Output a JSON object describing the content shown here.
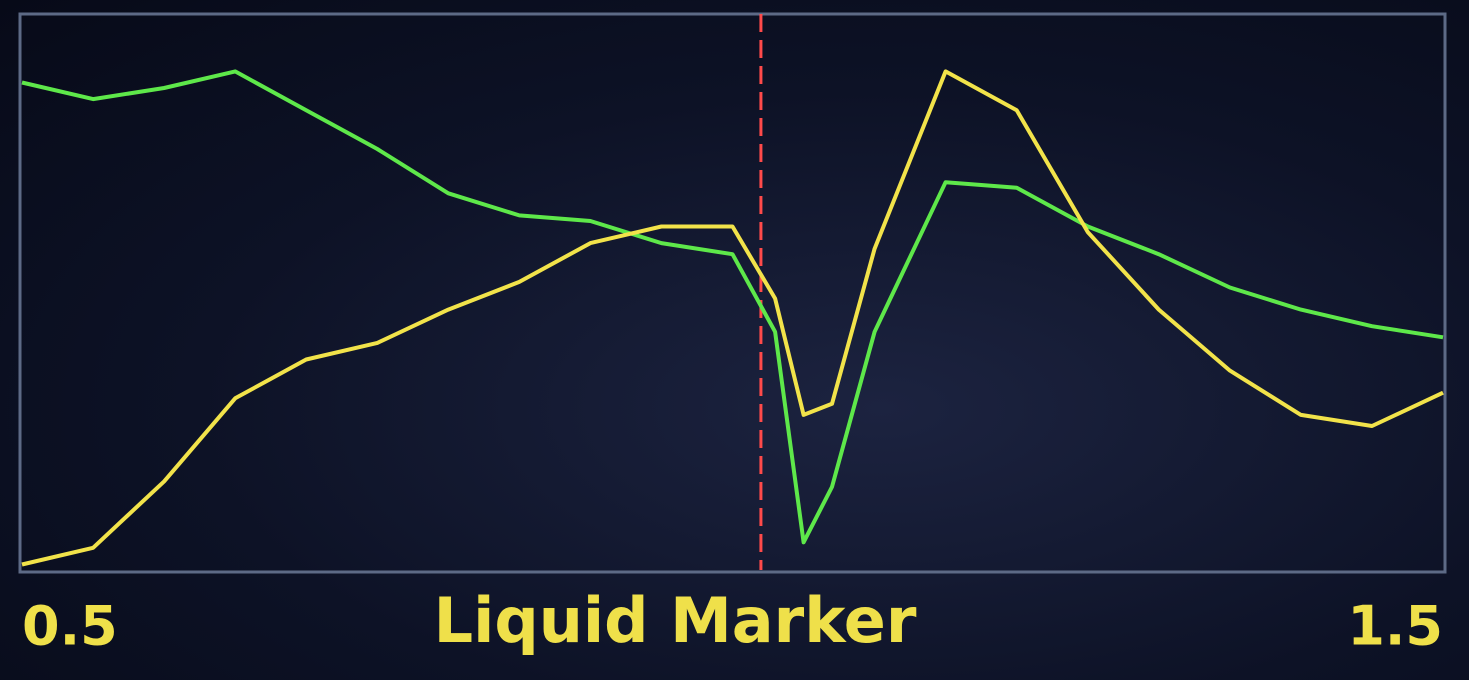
{
  "chart_data": {
    "type": "line",
    "title": "Liquid Marker",
    "x": [
      0.5,
      0.55,
      0.6,
      0.65,
      0.7,
      0.75,
      0.8,
      0.85,
      0.9,
      0.95,
      1.0,
      1.03,
      1.05,
      1.07,
      1.1,
      1.15,
      1.2,
      1.25,
      1.3,
      1.35,
      1.4,
      1.45,
      1.5
    ],
    "series": [
      {
        "color": "#5ee84a",
        "values": [
          88,
          85,
          87,
          90,
          83,
          76,
          68,
          64,
          63,
          59,
          57,
          43,
          5,
          15,
          43,
          70,
          69,
          62,
          57,
          51,
          47,
          44,
          42
        ]
      },
      {
        "color": "#f2e34a",
        "values": [
          1,
          4,
          16,
          31,
          38,
          41,
          47,
          52,
          59,
          62,
          62,
          49,
          28,
          30,
          58,
          90,
          83,
          61,
          47,
          36,
          28,
          26,
          32
        ]
      }
    ],
    "marker": 1.02,
    "marker_color": "#ff4a4a",
    "xlim": [
      0.5,
      1.5
    ],
    "xticks": [
      0.5,
      1.5
    ],
    "ylim": [
      0,
      100
    ]
  }
}
